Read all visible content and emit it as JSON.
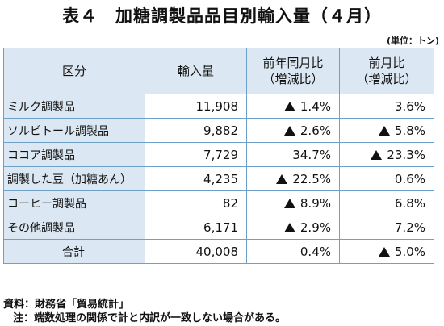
{
  "title": "表４　加糖調製品品目別輸入量（４月）",
  "unit": "(単位：トン)",
  "table": {
    "headers": {
      "category": "区分",
      "imports": "輸入量",
      "yoy_line1": "前年同月比",
      "yoy_line2": "（増減比）",
      "mom_line1": "前月比",
      "mom_line2": "（増減比）"
    },
    "rows": [
      {
        "name": "ミルク調製品",
        "imports": "11,908",
        "yoy": "1.4%",
        "yoy_decrease": true,
        "mom": "3.6%",
        "mom_decrease": false
      },
      {
        "name": "ソルビトール調製品",
        "imports": "9,882",
        "yoy": "2.6%",
        "yoy_decrease": true,
        "mom": "5.8%",
        "mom_decrease": true
      },
      {
        "name": "ココア調製品",
        "imports": "7,729",
        "yoy": "34.7%",
        "yoy_decrease": false,
        "mom": "23.3%",
        "mom_decrease": true
      },
      {
        "name": "調製した豆（加糖あん）",
        "imports": "4,235",
        "yoy": "22.5%",
        "yoy_decrease": true,
        "mom": "0.6%",
        "mom_decrease": false
      },
      {
        "name": "コーヒー調製品",
        "imports": "82",
        "yoy": "8.9%",
        "yoy_decrease": true,
        "mom": "6.8%",
        "mom_decrease": false
      },
      {
        "name": "その他調製品",
        "imports": "6,171",
        "yoy": "2.9%",
        "yoy_decrease": true,
        "mom": "7.2%",
        "mom_decrease": false
      }
    ],
    "total": {
      "name": "合計",
      "imports": "40,008",
      "yoy": "0.4%",
      "yoy_decrease": false,
      "mom": "5.0%",
      "mom_decrease": true
    }
  },
  "notes": {
    "source": "資料：財務省「貿易統計」",
    "note": "注：端数処理の関係で計と内訳が一致しない場合がある。"
  }
}
